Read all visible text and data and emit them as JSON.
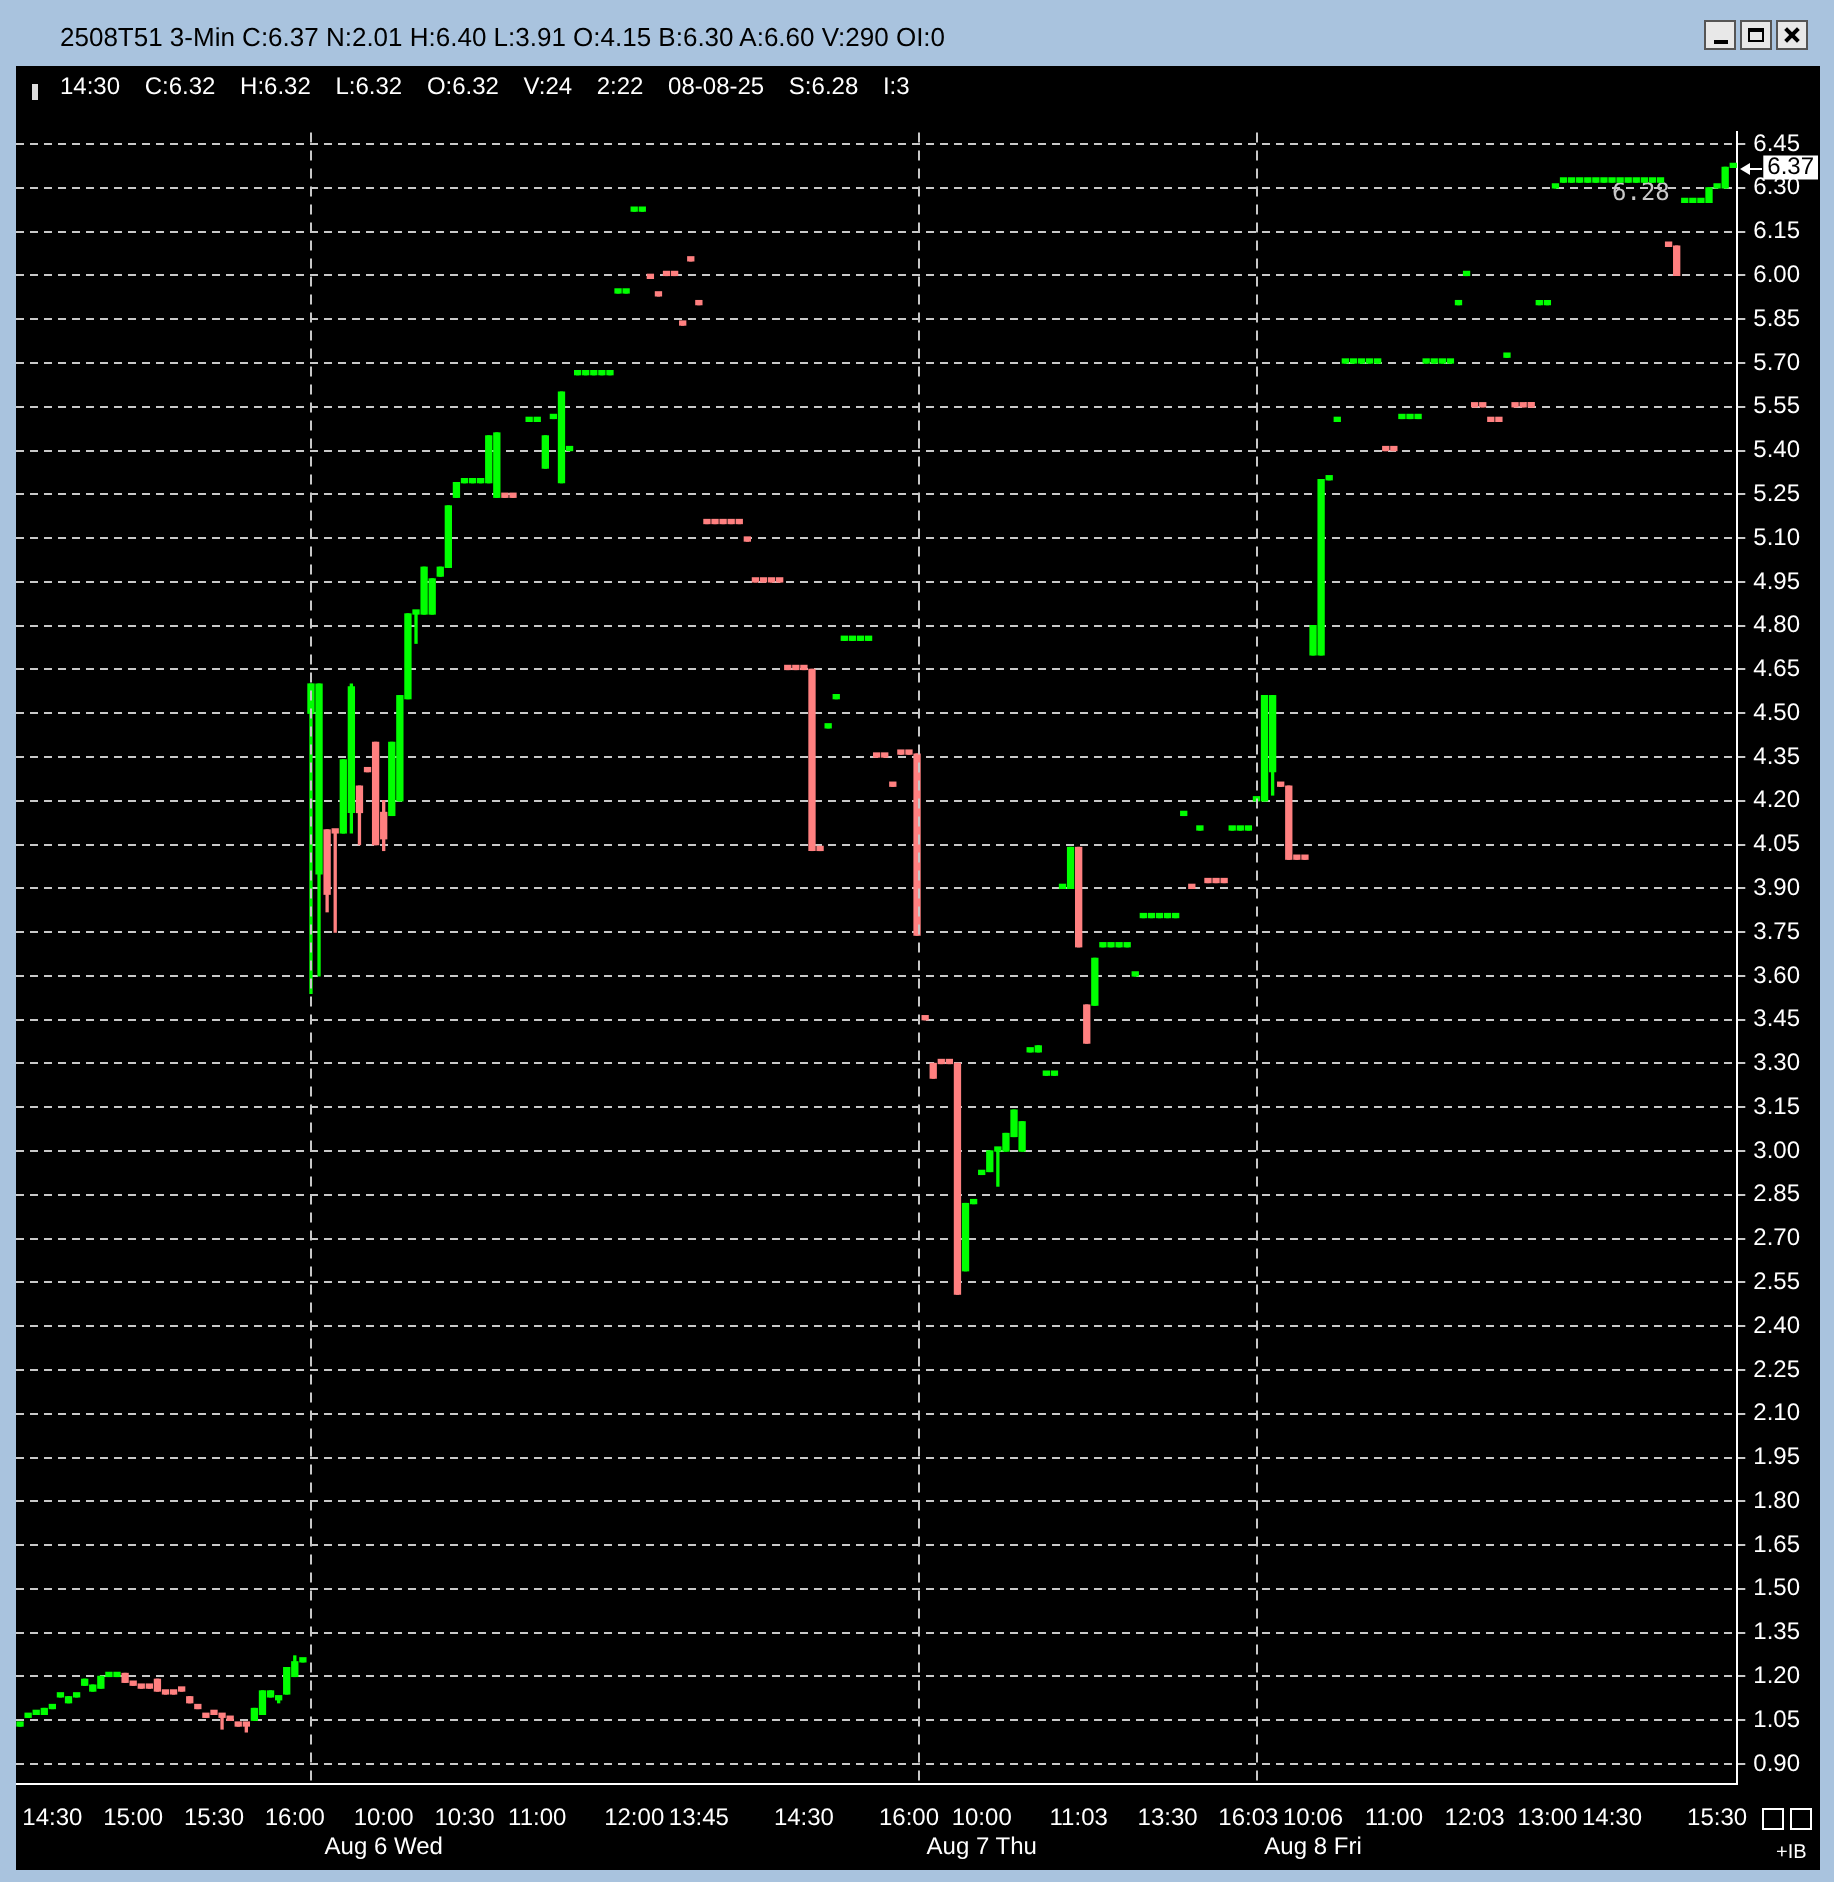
{
  "chart_data": {
    "type": "candlestick",
    "title": "2508T51 3-Min C:6.37 N:2.01 H:6.40 L:3.91 O:4.15 B:6.30 A:6.60 V:290 OI:0",
    "subtitle": "14:30 C:6.32 H:6.32 L:6.32 O:6.32 V:24 2:22 08-08-25 S:6.28 I:3",
    "categories": [
      null,
      null,
      null,
      null,
      "14:30",
      null,
      null,
      null,
      null,
      null,
      null,
      null,
      null,
      null,
      "15:00",
      null,
      null,
      null,
      null,
      null,
      null,
      null,
      null,
      null,
      "15:30",
      null,
      null,
      null,
      null,
      null,
      null,
      null,
      null,
      null,
      "16:00",
      null,
      null,
      null,
      null,
      null,
      null,
      null,
      null,
      null,
      null,
      "10:00\nAug 6 Wed",
      null,
      null,
      null,
      null,
      null,
      null,
      null,
      null,
      null,
      "10:30",
      null,
      null,
      null,
      null,
      null,
      null,
      null,
      null,
      "11:00",
      null,
      null,
      null,
      null,
      null,
      null,
      null,
      null,
      null,
      null,
      null,
      "12:00",
      null,
      null,
      null,
      null,
      null,
      null,
      null,
      "13:45",
      null,
      null,
      null,
      null,
      null,
      null,
      null,
      null,
      null,
      null,
      null,
      null,
      "14:30",
      null,
      null,
      null,
      null,
      null,
      null,
      null,
      null,
      null,
      null,
      null,
      null,
      "16:00",
      null,
      null,
      null,
      null,
      null,
      null,
      null,
      null,
      "10:00\nAug 7 Thu",
      null,
      null,
      null,
      null,
      null,
      null,
      null,
      null,
      null,
      null,
      null,
      "11:03",
      null,
      null,
      null,
      null,
      null,
      null,
      null,
      null,
      null,
      null,
      "13:30",
      null,
      null,
      null,
      null,
      null,
      null,
      null,
      null,
      null,
      "16:03",
      null,
      null,
      null,
      null,
      null,
      null,
      null,
      "10:06\nAug 8 Fri",
      null,
      null,
      null,
      null,
      null,
      null,
      null,
      null,
      null,
      "11:00",
      null,
      null,
      null,
      null,
      null,
      null,
      null,
      null,
      null,
      "12:03",
      null,
      null,
      null,
      null,
      null,
      null,
      null,
      null,
      "13:00",
      null,
      null,
      null,
      null,
      null,
      null,
      null,
      "14:30",
      null,
      null,
      null,
      null,
      null,
      null,
      null,
      null,
      null,
      null,
      null,
      null,
      "15:30",
      null,
      null
    ],
    "ohlc": [
      [
        1.03,
        1.03,
        1.03,
        1.03
      ],
      [
        1.06,
        1.06,
        1.06,
        1.06
      ],
      [
        1.07,
        1.07,
        1.07,
        1.07
      ],
      [
        1.07,
        1.09,
        1.07,
        1.09
      ],
      [
        1.09,
        1.09,
        1.09,
        1.09
      ],
      [
        1.13,
        1.13,
        1.13,
        1.13
      ],
      [
        1.11,
        1.13,
        1.11,
        1.13
      ],
      [
        1.13,
        1.13,
        1.13,
        1.13
      ],
      [
        1.17,
        1.19,
        1.17,
        1.19
      ],
      [
        1.15,
        1.17,
        1.15,
        1.17
      ],
      [
        1.16,
        1.2,
        1.16,
        1.2
      ],
      [
        1.2,
        1.2,
        1.2,
        1.2
      ],
      [
        1.2,
        1.21,
        1.2,
        1.21
      ],
      [
        1.21,
        1.21,
        1.18,
        1.18
      ],
      [
        1.18,
        1.18,
        1.17,
        1.17
      ],
      [
        1.16,
        1.16,
        1.16,
        1.16
      ],
      [
        1.16,
        1.16,
        1.16,
        1.16
      ],
      [
        1.19,
        1.19,
        1.15,
        1.15
      ],
      [
        1.15,
        1.15,
        1.14,
        1.14
      ],
      [
        1.14,
        1.14,
        1.14,
        1.14
      ],
      [
        1.15,
        1.15,
        1.15,
        1.15
      ],
      [
        1.13,
        1.13,
        1.11,
        1.11
      ],
      [
        1.1,
        1.1,
        1.09,
        1.09
      ],
      [
        1.07,
        1.07,
        1.06,
        1.06
      ],
      [
        1.07,
        1.07,
        1.07,
        1.07
      ],
      [
        1.07,
        1.07,
        1.02,
        1.06
      ],
      [
        1.05,
        1.05,
        1.05,
        1.05
      ],
      [
        1.03,
        1.03,
        1.03,
        1.03
      ],
      [
        1.03,
        1.03,
        1.01,
        1.03
      ],
      [
        1.05,
        1.09,
        1.05,
        1.09
      ],
      [
        1.07,
        1.15,
        1.07,
        1.15
      ],
      [
        1.13,
        1.15,
        1.13,
        1.15
      ],
      [
        1.12,
        1.13,
        1.11,
        1.12
      ],
      [
        1.14,
        1.23,
        1.14,
        1.23
      ],
      [
        1.2,
        1.27,
        1.2,
        1.25
      ],
      [
        1.25,
        1.25,
        1.25,
        1.25
      ],
      [
        4.5,
        4.6,
        3.54,
        4.6
      ],
      [
        3.95,
        4.6,
        3.6,
        4.6
      ],
      [
        4.1,
        4.1,
        3.82,
        3.88
      ],
      [
        4.1,
        4.1,
        3.75,
        4.09
      ],
      [
        4.09,
        4.34,
        4.09,
        4.34
      ],
      [
        4.16,
        4.6,
        4.09,
        4.59
      ],
      [
        4.25,
        4.25,
        4.05,
        4.16
      ],
      [
        4.3,
        4.3,
        4.3,
        4.3
      ],
      [
        4.4,
        4.4,
        4.05,
        4.05
      ],
      [
        4.16,
        4.2,
        4.03,
        4.07
      ],
      [
        4.15,
        4.4,
        4.15,
        4.4
      ],
      [
        4.2,
        4.56,
        4.2,
        4.56
      ],
      [
        4.55,
        4.84,
        4.55,
        4.84
      ],
      [
        4.84,
        4.84,
        4.74,
        4.84
      ],
      [
        4.84,
        5.0,
        4.84,
        5.0
      ],
      [
        4.84,
        4.96,
        4.84,
        4.96
      ],
      [
        4.97,
        5.0,
        4.97,
        5.0
      ],
      [
        5.0,
        5.21,
        5.0,
        5.21
      ],
      [
        5.24,
        5.29,
        5.24,
        5.29
      ],
      [
        5.29,
        5.29,
        5.29,
        5.29
      ],
      [
        5.29,
        5.29,
        5.29,
        5.29
      ],
      [
        5.29,
        5.29,
        5.29,
        5.29
      ],
      [
        5.29,
        5.45,
        5.29,
        5.45
      ],
      [
        5.24,
        5.46,
        5.24,
        5.46
      ],
      [
        5.24,
        5.24,
        5.24,
        5.24
      ],
      [
        5.24,
        5.24,
        5.24,
        5.24
      ],
      null,
      [
        5.5,
        5.5,
        5.5,
        5.5
      ],
      [
        5.5,
        5.5,
        5.5,
        5.5
      ],
      [
        5.34,
        5.45,
        5.34,
        5.45
      ],
      [
        5.51,
        5.51,
        5.51,
        5.51
      ],
      [
        5.29,
        5.6,
        5.29,
        5.6
      ],
      [
        5.4,
        5.4,
        5.4,
        5.4
      ],
      [
        5.66,
        5.66,
        5.66,
        5.66
      ],
      [
        5.66,
        5.66,
        5.66,
        5.66
      ],
      [
        5.66,
        5.66,
        5.66,
        5.66
      ],
      [
        5.66,
        5.66,
        5.66,
        5.66
      ],
      [
        5.66,
        5.66,
        5.66,
        5.66
      ],
      [
        5.94,
        5.94,
        5.94,
        5.94
      ],
      [
        5.94,
        5.94,
        5.94,
        5.94
      ],
      [
        6.22,
        6.22,
        6.22,
        6.22
      ],
      [
        6.22,
        6.22,
        6.22,
        6.22
      ],
      [
        5.99,
        5.99,
        5.99,
        5.99
      ],
      [
        5.93,
        5.93,
        5.93,
        5.93
      ],
      [
        6.0,
        6.0,
        6.0,
        6.0
      ],
      [
        6.0,
        6.0,
        6.0,
        6.0
      ],
      [
        5.83,
        5.83,
        5.83,
        5.83
      ],
      [
        6.05,
        6.05,
        6.05,
        6.05
      ],
      [
        5.9,
        5.9,
        5.9,
        5.9
      ],
      [
        5.15,
        5.15,
        5.15,
        5.15
      ],
      [
        5.15,
        5.15,
        5.15,
        5.15
      ],
      [
        5.15,
        5.15,
        5.15,
        5.15
      ],
      [
        5.15,
        5.15,
        5.15,
        5.15
      ],
      [
        5.15,
        5.15,
        5.15,
        5.15
      ],
      [
        5.09,
        5.09,
        5.09,
        5.09
      ],
      [
        4.95,
        4.95,
        4.95,
        4.95
      ],
      [
        4.95,
        4.95,
        4.95,
        4.95
      ],
      [
        4.95,
        4.95,
        4.95,
        4.95
      ],
      [
        4.95,
        4.95,
        4.95,
        4.95
      ],
      [
        4.65,
        4.65,
        4.65,
        4.65
      ],
      [
        4.65,
        4.65,
        4.65,
        4.65
      ],
      [
        4.65,
        4.65,
        4.65,
        4.65
      ],
      [
        4.65,
        4.65,
        4.03,
        4.03
      ],
      [
        4.03,
        4.03,
        4.03,
        4.03
      ],
      [
        4.45,
        4.45,
        4.45,
        4.45
      ],
      [
        4.55,
        4.55,
        4.55,
        4.55
      ],
      [
        4.75,
        4.75,
        4.75,
        4.75
      ],
      [
        4.75,
        4.75,
        4.75,
        4.75
      ],
      [
        4.75,
        4.75,
        4.75,
        4.75
      ],
      [
        4.75,
        4.75,
        4.75,
        4.75
      ],
      [
        4.35,
        4.35,
        4.35,
        4.35
      ],
      [
        4.35,
        4.35,
        4.35,
        4.35
      ],
      [
        4.25,
        4.25,
        4.25,
        4.25
      ],
      [
        4.36,
        4.36,
        4.36,
        4.36
      ],
      [
        4.36,
        4.36,
        4.36,
        4.36
      ],
      [
        4.36,
        4.36,
        3.74,
        3.74
      ],
      [
        3.45,
        3.45,
        3.45,
        3.45
      ],
      [
        3.3,
        3.3,
        3.25,
        3.25
      ],
      [
        3.3,
        3.3,
        3.3,
        3.3
      ],
      [
        3.3,
        3.3,
        3.3,
        3.3
      ],
      [
        3.3,
        3.3,
        2.51,
        2.51
      ],
      [
        2.59,
        2.82,
        2.59,
        2.82
      ],
      [
        2.82,
        2.82,
        2.82,
        2.82
      ],
      [
        2.92,
        2.92,
        2.92,
        2.92
      ],
      [
        2.93,
        3.0,
        2.93,
        3.0
      ],
      [
        3.0,
        3.0,
        2.88,
        3.0
      ],
      [
        3.0,
        3.06,
        3.0,
        3.06
      ],
      [
        3.05,
        3.14,
        3.05,
        3.14
      ],
      [
        3.0,
        3.1,
        3.0,
        3.1
      ],
      [
        3.34,
        3.34,
        3.34,
        3.34
      ],
      [
        3.34,
        3.36,
        3.34,
        3.36
      ],
      [
        3.26,
        3.26,
        3.26,
        3.26
      ],
      [
        3.26,
        3.26,
        3.26,
        3.26
      ],
      [
        3.9,
        3.9,
        3.9,
        3.9
      ],
      [
        3.9,
        4.04,
        3.9,
        4.04
      ],
      [
        4.04,
        4.04,
        3.7,
        3.7
      ],
      [
        3.5,
        3.5,
        3.37,
        3.37
      ],
      [
        3.5,
        3.66,
        3.5,
        3.66
      ],
      [
        3.7,
        3.7,
        3.7,
        3.7
      ],
      [
        3.7,
        3.7,
        3.7,
        3.7
      ],
      [
        3.7,
        3.7,
        3.7,
        3.7
      ],
      [
        3.7,
        3.7,
        3.7,
        3.7
      ],
      [
        3.6,
        3.6,
        3.6,
        3.6
      ],
      [
        3.8,
        3.8,
        3.8,
        3.8
      ],
      [
        3.8,
        3.8,
        3.8,
        3.8
      ],
      [
        3.8,
        3.8,
        3.8,
        3.8
      ],
      [
        3.8,
        3.8,
        3.8,
        3.8
      ],
      [
        3.8,
        3.8,
        3.8,
        3.8
      ],
      [
        4.15,
        4.15,
        4.15,
        4.15
      ],
      [
        3.9,
        3.9,
        3.9,
        3.9
      ],
      [
        4.1,
        4.1,
        4.1,
        4.1
      ],
      [
        3.92,
        3.92,
        3.92,
        3.92
      ],
      [
        3.92,
        3.92,
        3.92,
        3.92
      ],
      [
        3.92,
        3.92,
        3.92,
        3.92
      ],
      [
        4.1,
        4.1,
        4.1,
        4.1
      ],
      [
        4.1,
        4.1,
        4.1,
        4.1
      ],
      [
        4.1,
        4.1,
        4.1,
        4.1
      ],
      [
        4.2,
        4.2,
        4.2,
        4.2
      ],
      [
        4.2,
        4.56,
        4.2,
        4.56
      ],
      [
        4.3,
        4.56,
        4.22,
        4.56
      ],
      [
        4.25,
        4.25,
        4.25,
        4.25
      ],
      [
        4.25,
        4.25,
        4.0,
        4.0
      ],
      [
        4.0,
        4.0,
        4.0,
        4.0
      ],
      [
        4.0,
        4.0,
        4.0,
        4.0
      ],
      [
        4.7,
        4.8,
        4.7,
        4.8
      ],
      [
        4.7,
        5.3,
        4.7,
        5.3
      ],
      [
        5.3,
        5.3,
        5.3,
        5.3
      ],
      [
        5.5,
        5.5,
        5.5,
        5.5
      ],
      [
        5.7,
        5.7,
        5.7,
        5.7
      ],
      [
        5.7,
        5.7,
        5.7,
        5.7
      ],
      [
        5.7,
        5.7,
        5.7,
        5.7
      ],
      [
        5.7,
        5.7,
        5.7,
        5.7
      ],
      [
        5.7,
        5.7,
        5.7,
        5.7
      ],
      [
        5.4,
        5.4,
        5.4,
        5.4
      ],
      [
        5.4,
        5.4,
        5.4,
        5.4
      ],
      [
        5.51,
        5.51,
        5.51,
        5.51
      ],
      [
        5.51,
        5.51,
        5.51,
        5.51
      ],
      [
        5.51,
        5.51,
        5.51,
        5.51
      ],
      [
        5.7,
        5.7,
        5.7,
        5.7
      ],
      [
        5.7,
        5.7,
        5.7,
        5.7
      ],
      [
        5.7,
        5.7,
        5.7,
        5.7
      ],
      [
        5.7,
        5.7,
        5.7,
        5.7
      ],
      [
        5.9,
        5.9,
        5.9,
        5.9
      ],
      [
        6.0,
        6.0,
        6.0,
        6.0
      ],
      [
        5.55,
        5.55,
        5.55,
        5.55
      ],
      [
        5.55,
        5.55,
        5.55,
        5.55
      ],
      [
        5.5,
        5.5,
        5.5,
        5.5
      ],
      [
        5.5,
        5.5,
        5.5,
        5.5
      ],
      [
        5.72,
        5.72,
        5.72,
        5.72
      ],
      [
        5.55,
        5.55,
        5.55,
        5.55
      ],
      [
        5.55,
        5.55,
        5.55,
        5.55
      ],
      [
        5.55,
        5.55,
        5.55,
        5.55
      ],
      [
        5.9,
        5.9,
        5.9,
        5.9
      ],
      [
        5.9,
        5.9,
        5.9,
        5.9
      ],
      [
        6.3,
        6.3,
        6.3,
        6.3
      ],
      [
        6.32,
        6.32,
        6.32,
        6.32
      ],
      [
        6.32,
        6.32,
        6.32,
        6.32
      ],
      [
        6.32,
        6.32,
        6.32,
        6.32
      ],
      [
        6.32,
        6.32,
        6.32,
        6.32
      ],
      [
        6.32,
        6.32,
        6.32,
        6.32
      ],
      [
        6.32,
        6.32,
        6.32,
        6.32
      ],
      [
        6.32,
        6.32,
        6.32,
        6.32
      ],
      [
        6.32,
        6.32,
        6.32,
        6.32
      ],
      [
        6.32,
        6.32,
        6.32,
        6.32
      ],
      [
        6.32,
        6.32,
        6.32,
        6.32
      ],
      [
        6.32,
        6.32,
        6.32,
        6.32
      ],
      [
        6.32,
        6.32,
        6.32,
        6.32
      ],
      [
        6.32,
        6.32,
        6.32,
        6.32
      ],
      [
        6.1,
        6.1,
        6.1,
        6.1
      ],
      [
        6.1,
        6.1,
        6.0,
        6.0
      ],
      [
        6.25,
        6.25,
        6.25,
        6.25
      ],
      [
        6.25,
        6.25,
        6.25,
        6.25
      ],
      [
        6.25,
        6.25,
        6.25,
        6.25
      ],
      [
        6.25,
        6.3,
        6.25,
        6.3
      ],
      [
        6.3,
        6.3,
        6.3,
        6.3
      ],
      [
        6.3,
        6.37,
        6.3,
        6.37
      ],
      [
        6.37,
        6.37,
        6.37,
        6.37
      ]
    ],
    "colors": [
      "#00ff00",
      "#00ff00",
      "#00ff00",
      "#00ff00",
      "#00ff00",
      "#00ff00",
      "#00ff00",
      "#00ff00",
      "#00ff00",
      "#00ff00",
      "#00ff00",
      "#00ff00",
      "#00ff00",
      "#ff8080",
      "#ff8080",
      "#ff8080",
      "#ff8080",
      "#ff8080",
      "#ff8080",
      "#ff8080",
      "#ff8080",
      "#ff8080",
      "#ff8080",
      "#ff8080",
      "#ff8080",
      "#ff8080",
      "#ff8080",
      "#ff8080",
      "#ff8080",
      "#00ff00",
      "#00ff00",
      "#00ff00",
      "#00ff00",
      "#00ff00",
      "#00ff00",
      "#00ff00",
      "#00ff00",
      "#00ff00",
      "#ff8080",
      "#ff8080",
      "#00ff00",
      "#00ff00",
      "#ff8080",
      "#ff8080",
      "#ff8080",
      "#ff8080",
      "#00ff00",
      "#00ff00",
      "#00ff00",
      "#00ff00",
      "#00ff00",
      "#00ff00",
      "#00ff00",
      "#00ff00",
      "#00ff00",
      "#00ff00",
      "#00ff00",
      "#00ff00",
      "#00ff00",
      "#00ff00",
      "#ff8080",
      "#ff8080",
      null,
      "#00ff00",
      "#00ff00",
      "#00ff00",
      "#00ff00",
      "#00ff00",
      "#00ff00",
      "#00ff00",
      "#00ff00",
      "#00ff00",
      "#00ff00",
      "#00ff00",
      "#00ff00",
      "#00ff00",
      "#00ff00",
      "#00ff00",
      "#ff8080",
      "#ff8080",
      "#ff8080",
      "#ff8080",
      "#ff8080",
      "#ff8080",
      "#ff8080",
      "#ff8080",
      "#ff8080",
      "#ff8080",
      "#ff8080",
      "#ff8080",
      "#ff8080",
      "#ff8080",
      "#ff8080",
      "#ff8080",
      "#ff8080",
      "#ff8080",
      "#ff8080",
      "#ff8080",
      "#ff8080",
      "#ff8080",
      "#00ff00",
      "#00ff00",
      "#00ff00",
      "#00ff00",
      "#00ff00",
      "#00ff00",
      "#ff8080",
      "#ff8080",
      "#ff8080",
      "#ff8080",
      "#ff8080",
      "#ff8080",
      "#ff8080",
      "#ff8080",
      "#ff8080",
      "#ff8080",
      "#ff8080",
      "#00ff00",
      "#00ff00",
      "#00ff00",
      "#00ff00",
      "#00ff00",
      "#00ff00",
      "#00ff00",
      "#00ff00",
      "#00ff00",
      "#00ff00",
      "#00ff00",
      "#00ff00",
      "#00ff00",
      "#00ff00",
      "#ff8080",
      "#ff8080",
      "#00ff00",
      "#00ff00",
      "#00ff00",
      "#00ff00",
      "#00ff00",
      "#00ff00",
      "#00ff00",
      "#00ff00",
      "#00ff00",
      "#00ff00",
      "#00ff00",
      "#00ff00",
      "#ff8080",
      "#00ff00",
      "#ff8080",
      "#ff8080",
      "#ff8080",
      "#00ff00",
      "#00ff00",
      "#00ff00",
      "#00ff00",
      "#00ff00",
      "#00ff00",
      "#ff8080",
      "#ff8080",
      "#ff8080",
      "#ff8080",
      "#00ff00",
      "#00ff00",
      "#00ff00",
      "#00ff00",
      "#00ff00",
      "#00ff00",
      "#00ff00",
      "#00ff00",
      "#00ff00",
      "#ff8080",
      "#ff8080",
      "#00ff00",
      "#00ff00",
      "#00ff00",
      "#00ff00",
      "#00ff00",
      "#00ff00",
      "#00ff00",
      "#00ff00",
      "#00ff00",
      "#ff8080",
      "#ff8080",
      "#ff8080",
      "#ff8080",
      "#00ff00",
      "#ff8080",
      "#ff8080",
      "#ff8080",
      "#00ff00",
      "#00ff00",
      "#00ff00",
      "#00ff00",
      "#00ff00",
      "#00ff00",
      "#00ff00",
      "#00ff00",
      "#00ff00",
      "#00ff00",
      "#00ff00",
      "#00ff00",
      "#00ff00",
      "#00ff00",
      "#00ff00",
      "#00ff00",
      "#ff8080",
      "#ff8080",
      "#00ff00",
      "#00ff00",
      "#00ff00",
      "#00ff00",
      "#00ff00",
      "#00ff00",
      "#00ff00"
    ],
    "ylim": [
      0.83,
      6.49
    ],
    "yticks": [
      {
        "value": 0.9,
        "label": "0.90"
      },
      {
        "value": 1.05,
        "label": "1.05"
      },
      {
        "value": 1.2,
        "label": "1.20"
      },
      {
        "value": 1.35,
        "label": "1.35"
      },
      {
        "value": 1.5,
        "label": "1.50"
      },
      {
        "value": 1.65,
        "label": "1.65"
      },
      {
        "value": 1.8,
        "label": "1.80"
      },
      {
        "value": 1.95,
        "label": "1.95"
      },
      {
        "value": 2.1,
        "label": "2.10"
      },
      {
        "value": 2.25,
        "label": "2.25"
      },
      {
        "value": 2.4,
        "label": "2.40"
      },
      {
        "value": 2.55,
        "label": "2.55"
      },
      {
        "value": 2.7,
        "label": "2.70"
      },
      {
        "value": 2.85,
        "label": "2.85"
      },
      {
        "value": 3,
        "label": "3.00"
      },
      {
        "value": 3.15,
        "label": "3.15"
      },
      {
        "value": 3.3,
        "label": "3.30"
      },
      {
        "value": 3.45,
        "label": "3.45"
      },
      {
        "value": 3.6,
        "label": "3.60"
      },
      {
        "value": 3.75,
        "label": "3.75"
      },
      {
        "value": 3.9,
        "label": "3.90"
      },
      {
        "value": 4.05,
        "label": "4.05"
      },
      {
        "value": 4.2,
        "label": "4.20"
      },
      {
        "value": 4.35,
        "label": "4.35"
      },
      {
        "value": 4.5,
        "label": "4.50"
      },
      {
        "value": 4.65,
        "label": "4.65"
      },
      {
        "value": 4.8,
        "label": "4.80"
      },
      {
        "value": 4.95,
        "label": "4.95"
      },
      {
        "value": 5.1,
        "label": "5.10"
      },
      {
        "value": 5.25,
        "label": "5.25"
      },
      {
        "value": 5.4,
        "label": "5.40"
      },
      {
        "value": 5.55,
        "label": "5.55"
      },
      {
        "value": 5.7,
        "label": "5.70"
      },
      {
        "value": 5.85,
        "label": "5.85"
      },
      {
        "value": 6,
        "label": "6.00"
      },
      {
        "value": 6.15,
        "label": "6.15"
      },
      {
        "value": 6.3,
        "label": "6.30"
      },
      {
        "value": 6.45,
        "label": "6.45"
      }
    ],
    "grid": "y",
    "legend": false,
    "ref_lines": [
      {
        "axis": "y",
        "value": 6.37,
        "label": "6.37",
        "color": "#ffffff"
      }
    ],
    "annotations": [
      "6.28",
      "+IB"
    ]
  }
}
